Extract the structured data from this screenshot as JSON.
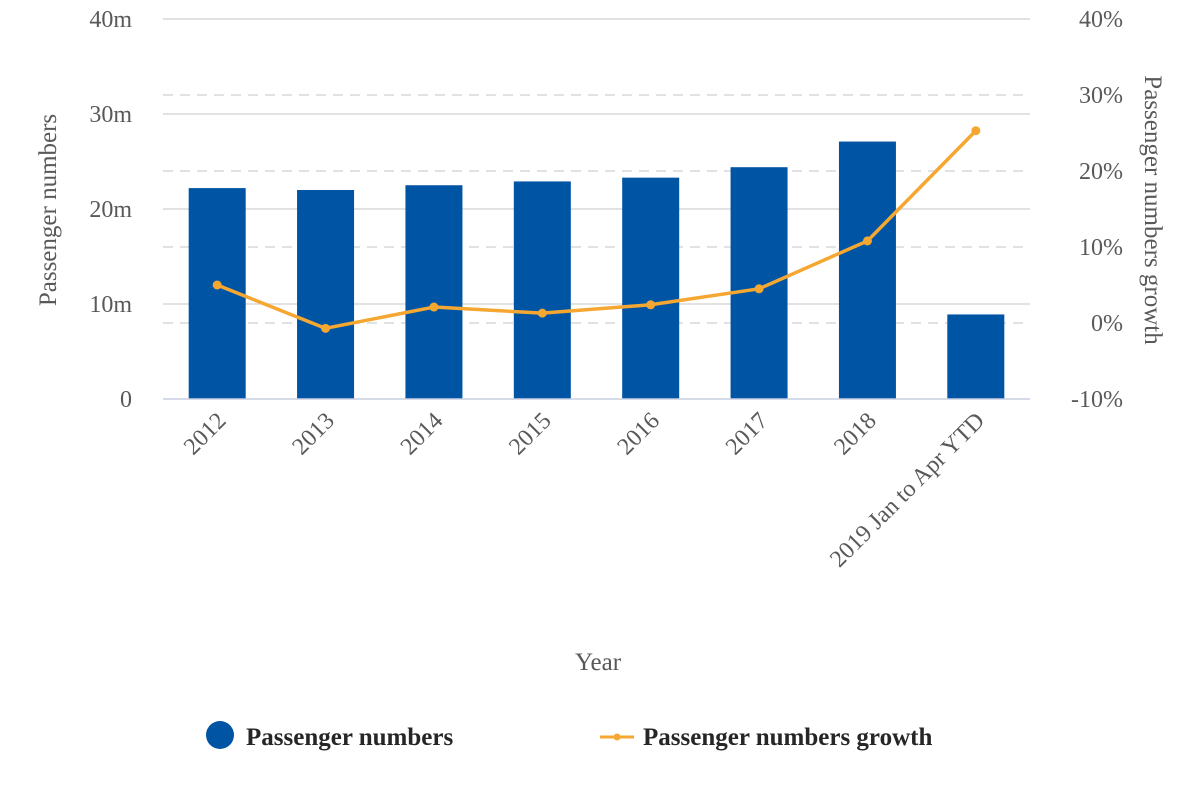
{
  "chart_data": {
    "type": "bar",
    "title": "",
    "xlabel": "Year",
    "ylabel": "Passenger numbers",
    "y2label": "Passenger numbers growth",
    "categories": [
      "2012",
      "2013",
      "2014",
      "2015",
      "2016",
      "2017",
      "2018",
      "2019 Jan to Apr YTD"
    ],
    "ylim": [
      0,
      40
    ],
    "y_ticks": [
      0,
      10,
      20,
      30,
      40
    ],
    "y_tick_labels": [
      "0",
      "10m",
      "20m",
      "30m",
      "40m"
    ],
    "y2lim": [
      -10,
      40
    ],
    "y2_ticks": [
      -10,
      0,
      10,
      20,
      30,
      40
    ],
    "y2_tick_labels": [
      "-10%",
      "0%",
      "10%",
      "20%",
      "30%",
      "40%"
    ],
    "grid": true,
    "legend_position": "bottom",
    "series": [
      {
        "name": "Passenger numbers",
        "type": "bar",
        "axis": "left",
        "color": "#0054A4",
        "values": [
          22.2,
          22.0,
          22.5,
          22.9,
          23.3,
          24.4,
          27.1,
          8.9
        ]
      },
      {
        "name": "Passenger numbers growth",
        "type": "line",
        "axis": "right",
        "color": "#F5A731",
        "values": [
          5.0,
          -0.7,
          2.1,
          1.3,
          2.4,
          4.5,
          10.8,
          25.3
        ]
      }
    ]
  }
}
